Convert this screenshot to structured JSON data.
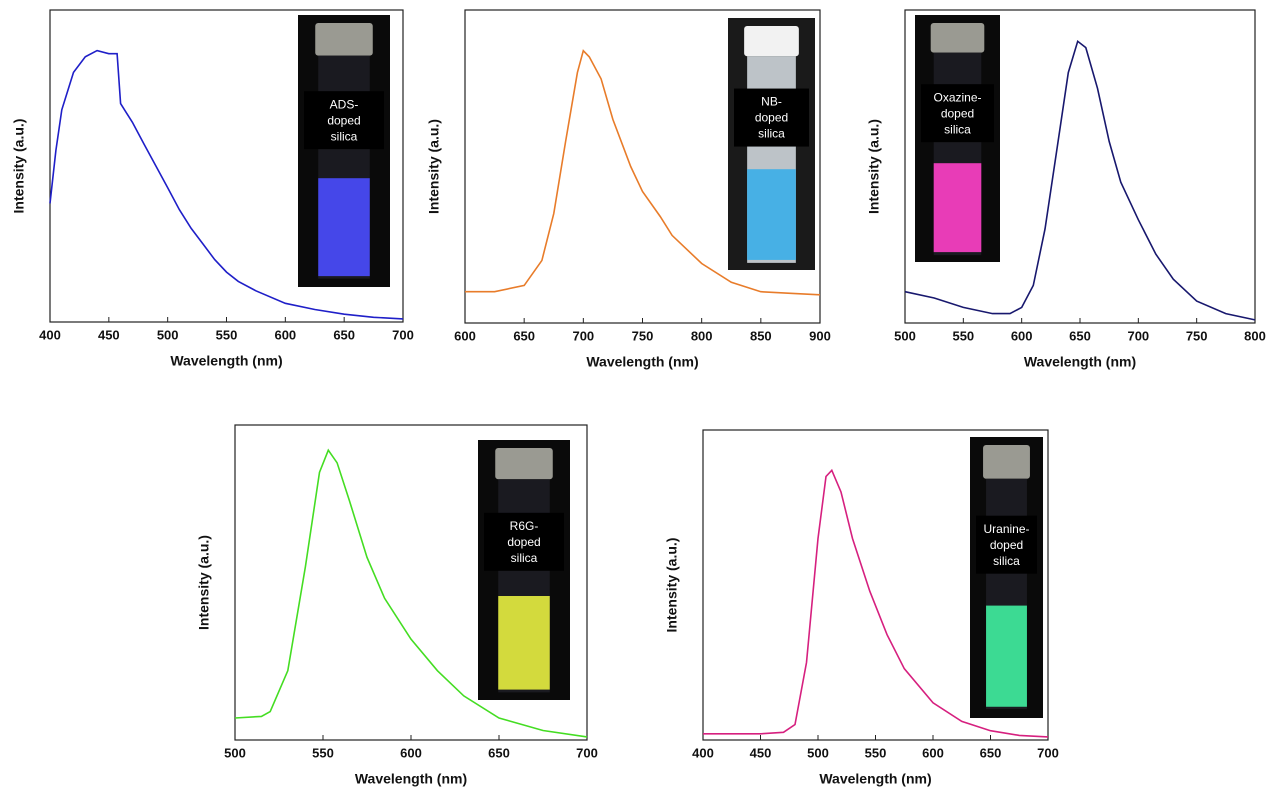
{
  "chart_data": [
    {
      "type": "line",
      "x_label": "Wavelength (nm)",
      "y_label": "Intensity (a.u.)",
      "inset_label": [
        "ADS-",
        "doped",
        "silica"
      ],
      "color": "#1f1fc8",
      "x": [
        400,
        405,
        410,
        420,
        430,
        440,
        450,
        457,
        460,
        470,
        480,
        490,
        500,
        510,
        520,
        530,
        540,
        550,
        560,
        575,
        600,
        625,
        650,
        675,
        700
      ],
      "values": [
        0.38,
        0.55,
        0.68,
        0.8,
        0.85,
        0.87,
        0.86,
        0.86,
        0.7,
        0.64,
        0.57,
        0.5,
        0.43,
        0.36,
        0.3,
        0.25,
        0.2,
        0.16,
        0.13,
        0.1,
        0.06,
        0.04,
        0.025,
        0.015,
        0.01
      ],
      "xlim": [
        400,
        700
      ],
      "xticks": [
        400,
        450,
        500,
        550,
        600,
        650,
        700
      ],
      "ylim": [
        0,
        1
      ]
    },
    {
      "type": "line",
      "x_label": "Wavelength (nm)",
      "y_label": "Intensity (a.u.)",
      "inset_label": [
        "NB-",
        "doped",
        "silica"
      ],
      "color": "#e87c2a",
      "x": [
        600,
        625,
        650,
        665,
        675,
        685,
        695,
        700,
        705,
        715,
        725,
        740,
        750,
        765,
        775,
        800,
        825,
        850,
        875,
        900
      ],
      "values": [
        0.1,
        0.1,
        0.12,
        0.2,
        0.35,
        0.58,
        0.8,
        0.87,
        0.85,
        0.78,
        0.65,
        0.5,
        0.42,
        0.34,
        0.28,
        0.19,
        0.13,
        0.1,
        0.095,
        0.09
      ],
      "xlim": [
        600,
        900
      ],
      "xticks": [
        600,
        650,
        700,
        750,
        800,
        850,
        900
      ],
      "ylim": [
        0,
        1
      ]
    },
    {
      "type": "line",
      "x_label": "Wavelength (nm)",
      "y_label": "Intensity (a.u.)",
      "inset_label": [
        "Oxazine-",
        "doped",
        "silica"
      ],
      "color": "#18186e",
      "x": [
        500,
        525,
        550,
        575,
        590,
        600,
        610,
        620,
        630,
        640,
        648,
        655,
        665,
        675,
        685,
        700,
        715,
        730,
        750,
        775,
        800
      ],
      "values": [
        0.1,
        0.08,
        0.05,
        0.03,
        0.03,
        0.05,
        0.12,
        0.3,
        0.55,
        0.8,
        0.9,
        0.88,
        0.75,
        0.58,
        0.45,
        0.33,
        0.22,
        0.14,
        0.07,
        0.03,
        0.01
      ],
      "xlim": [
        500,
        800
      ],
      "xticks": [
        500,
        550,
        600,
        650,
        700,
        750,
        800
      ],
      "ylim": [
        0,
        1
      ]
    },
    {
      "type": "line",
      "x_label": "Wavelength (nm)",
      "y_label": "Intensity (a.u.)",
      "inset_label": [
        "R6G-",
        "doped",
        "silica"
      ],
      "color": "#44dd22",
      "x": [
        500,
        515,
        520,
        530,
        540,
        548,
        553,
        558,
        565,
        575,
        585,
        600,
        615,
        630,
        650,
        675,
        700
      ],
      "values": [
        0.07,
        0.075,
        0.09,
        0.22,
        0.55,
        0.85,
        0.92,
        0.88,
        0.76,
        0.58,
        0.45,
        0.32,
        0.22,
        0.14,
        0.07,
        0.03,
        0.01
      ],
      "xlim": [
        500,
        700
      ],
      "xticks": [
        500,
        550,
        600,
        650,
        700
      ],
      "ylim": [
        0,
        1
      ]
    },
    {
      "type": "line",
      "x_label": "Wavelength (nm)",
      "y_label": "Intensity (a.u.)",
      "inset_label": [
        "Uranine-",
        "doped",
        "silica"
      ],
      "color": "#d6207f",
      "x": [
        400,
        450,
        470,
        480,
        490,
        500,
        507,
        512,
        520,
        530,
        545,
        560,
        575,
        600,
        625,
        650,
        675,
        700
      ],
      "values": [
        0.02,
        0.02,
        0.025,
        0.05,
        0.25,
        0.65,
        0.85,
        0.87,
        0.8,
        0.65,
        0.48,
        0.34,
        0.23,
        0.12,
        0.06,
        0.03,
        0.015,
        0.01
      ],
      "xlim": [
        400,
        700
      ],
      "xticks": [
        400,
        450,
        500,
        550,
        600,
        650,
        700
      ],
      "ylim": [
        0,
        1
      ]
    }
  ]
}
